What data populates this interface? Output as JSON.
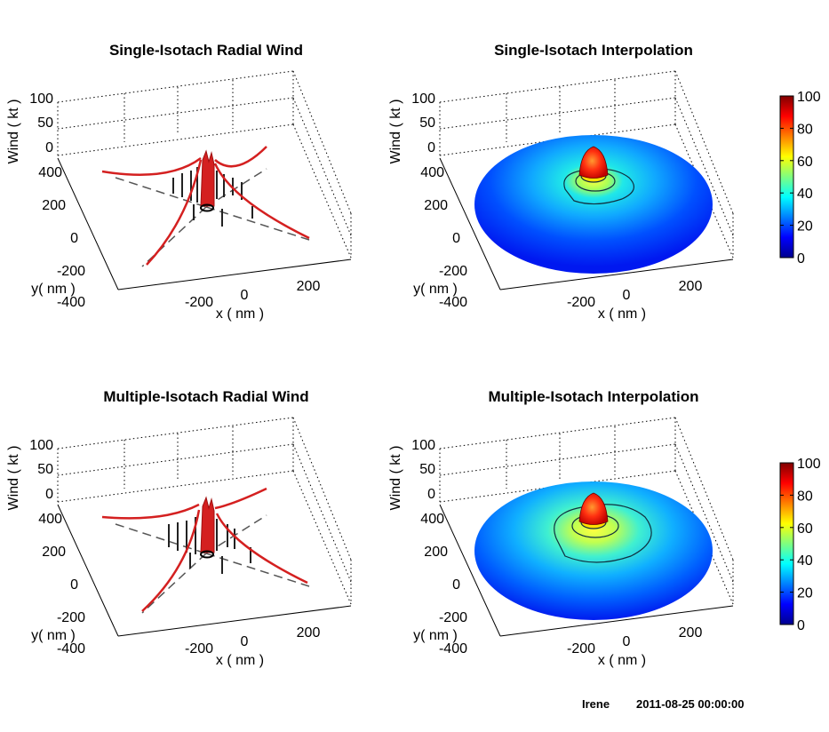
{
  "figure": {
    "storm_name": "Irene",
    "timestamp": "2011-08-25 00:00:00"
  },
  "colorbar": {
    "min": 0,
    "max": 100,
    "ticks": [
      "0",
      "20",
      "40",
      "60",
      "80",
      "100"
    ],
    "colormap": "jet"
  },
  "chart_data": [
    {
      "type": "line",
      "title": "Single-Isotach Radial Wind",
      "xlabel": "x ( nm )",
      "ylabel": "y( nm )",
      "zlabel": "Wind ( kt )",
      "x_ticks": [
        "-200",
        "0",
        "200"
      ],
      "y_ticks": [
        "-400",
        "-200",
        "0",
        "200",
        "400"
      ],
      "z_ticks": [
        "0",
        "50",
        "100"
      ],
      "zlim": [
        0,
        100
      ],
      "series": [
        {
          "kind": "radial-wind-profile",
          "quadrants": 4,
          "max_wind": 90
        }
      ]
    },
    {
      "type": "heatmap",
      "title": "Single-Isotach Interpolation",
      "xlabel": "x ( nm )",
      "ylabel": "y( nm )",
      "zlabel": "Wind ( kt )",
      "x_ticks": [
        "-200",
        "0",
        "200"
      ],
      "y_ticks": [
        "-400",
        "-200",
        "0",
        "200",
        "400"
      ],
      "z_ticks": [
        "0",
        "50",
        "100"
      ],
      "zlim": [
        0,
        100
      ],
      "contours": [
        34,
        50,
        64
      ]
    },
    {
      "type": "line",
      "title": "Multiple-Isotach Radial Wind",
      "xlabel": "x ( nm )",
      "ylabel": "y( nm )",
      "zlabel": "Wind ( kt )",
      "x_ticks": [
        "-200",
        "0",
        "200"
      ],
      "y_ticks": [
        "-400",
        "-200",
        "0",
        "200",
        "400"
      ],
      "z_ticks": [
        "0",
        "50",
        "100"
      ],
      "zlim": [
        0,
        100
      ],
      "series": [
        {
          "kind": "radial-wind-profile",
          "quadrants": 4,
          "max_wind": 90
        }
      ]
    },
    {
      "type": "heatmap",
      "title": "Multiple-Isotach Interpolation",
      "xlabel": "x ( nm )",
      "ylabel": "y( nm )",
      "zlabel": "Wind ( kt )",
      "x_ticks": [
        "-200",
        "0",
        "200"
      ],
      "y_ticks": [
        "-400",
        "-200",
        "0",
        "200",
        "400"
      ],
      "z_ticks": [
        "0",
        "50",
        "100"
      ],
      "zlim": [
        0,
        100
      ],
      "contours": [
        34,
        50,
        64
      ]
    }
  ]
}
